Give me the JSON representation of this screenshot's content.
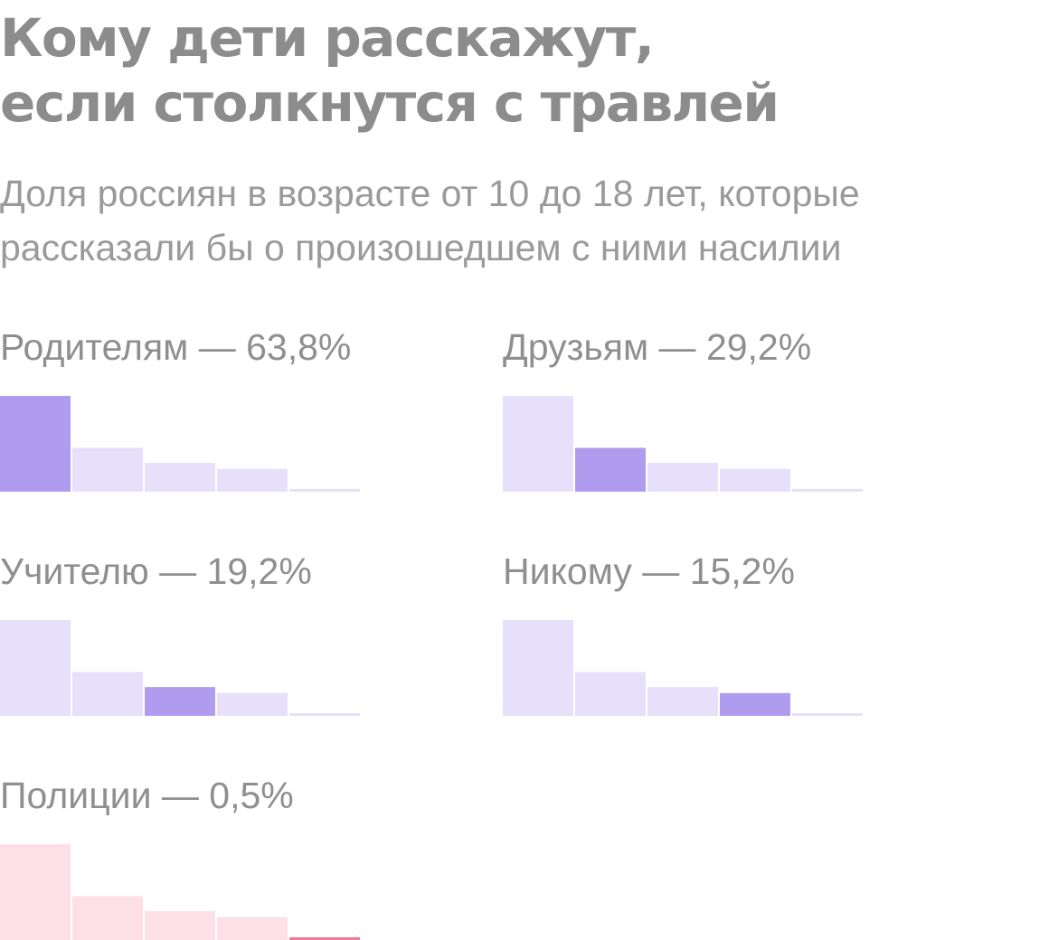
{
  "title_lines": [
    "Кому дети расскажут,",
    "если столкнутся с травлей"
  ],
  "subtitle_lines": [
    "Доля россиян в возрасте от 10 до 18 лет, которые",
    "рассказали бы о произошедшем с ними насилии"
  ],
  "colors": {
    "highlight_purple": "#b09cee",
    "base_purple": "#e6e0fa",
    "highlight_pink": "#f07a96",
    "base_pink": "#fde0e7",
    "label_text": "#8f8f8f"
  },
  "chart_data": [
    {
      "type": "bar",
      "label": "Родителям — 63,8%",
      "categories": [
        "Родителям",
        "Друзьям",
        "Учителю",
        "Никому",
        "Полиции"
      ],
      "values": [
        63.8,
        29.2,
        19.2,
        15.2,
        0.5
      ],
      "highlight_index": 0,
      "color": "purple"
    },
    {
      "type": "bar",
      "label": "Друзьям — 29,2%",
      "categories": [
        "Родителям",
        "Друзьям",
        "Учителю",
        "Никому",
        "Полиции"
      ],
      "values": [
        63.8,
        29.2,
        19.2,
        15.2,
        0.5
      ],
      "highlight_index": 1,
      "color": "purple"
    },
    {
      "type": "bar",
      "label": "Учителю — 19,2%",
      "categories": [
        "Родителям",
        "Друзьям",
        "Учителю",
        "Никому",
        "Полиции"
      ],
      "values": [
        63.8,
        29.2,
        19.2,
        15.2,
        0.5
      ],
      "highlight_index": 2,
      "color": "purple"
    },
    {
      "type": "bar",
      "label": "Никому — 15,2%",
      "categories": [
        "Родителям",
        "Друзьям",
        "Учителю",
        "Никому",
        "Полиции"
      ],
      "values": [
        63.8,
        29.2,
        19.2,
        15.2,
        0.5
      ],
      "highlight_index": 3,
      "color": "purple"
    },
    {
      "type": "bar",
      "label": "Полиции — 0,5%",
      "categories": [
        "Родителям",
        "Друзьям",
        "Учителю",
        "Никому",
        "Полиции"
      ],
      "values": [
        63.8,
        29.2,
        19.2,
        15.2,
        0.5
      ],
      "highlight_index": 4,
      "color": "pink"
    }
  ]
}
